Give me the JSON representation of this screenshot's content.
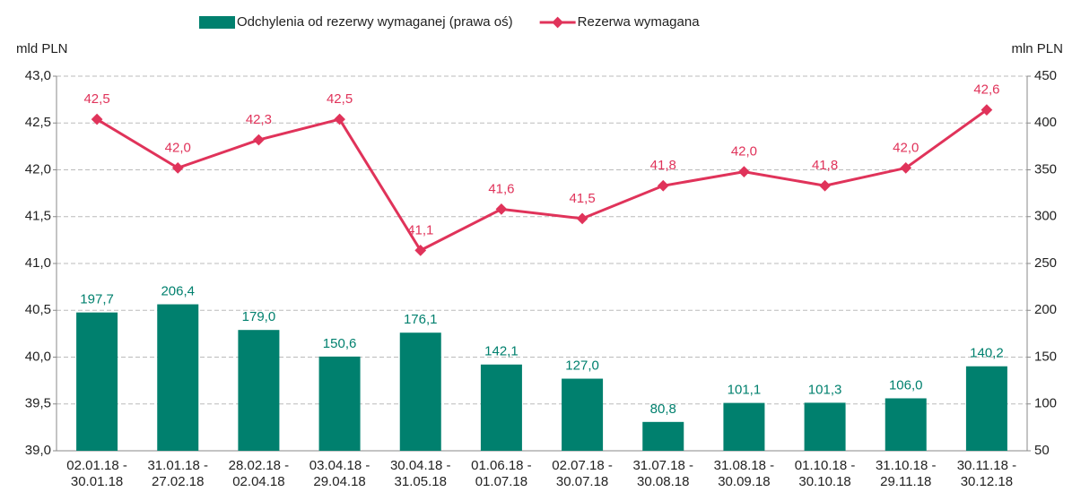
{
  "chart_data": {
    "type": "bar_line",
    "categories": [
      [
        "02.01.18 -",
        "30.01.18"
      ],
      [
        "31.01.18 -",
        "27.02.18"
      ],
      [
        "28.02.18 -",
        "02.04.18"
      ],
      [
        "03.04.18 -",
        "29.04.18"
      ],
      [
        "30.04.18 -",
        "31.05.18"
      ],
      [
        "01.06.18 -",
        "01.07.18"
      ],
      [
        "02.07.18 -",
        "30.07.18"
      ],
      [
        "31.07.18 -",
        "30.08.18"
      ],
      [
        "31.08.18 -",
        "30.09.18"
      ],
      [
        "01.10.18 -",
        "30.10.18"
      ],
      [
        "31.10.18 -",
        "29.11.18"
      ],
      [
        "30.11.18 -",
        "30.12.18"
      ]
    ],
    "y_label": "mld PLN",
    "y2_label": "mln PLN",
    "ylim": [
      39,
      43
    ],
    "yticks": [
      {
        "value": 39,
        "label": "39,0"
      },
      {
        "value": 39.5,
        "label": "39,5"
      },
      {
        "value": 40,
        "label": "40,0"
      },
      {
        "value": 40.5,
        "label": "40,5"
      },
      {
        "value": 41,
        "label": "41,0"
      },
      {
        "value": 41.5,
        "label": "41,5"
      },
      {
        "value": 42,
        "label": "42,0"
      },
      {
        "value": 42.5,
        "label": "42,5"
      },
      {
        "value": 43,
        "label": "43,0"
      }
    ],
    "y2lim": [
      50,
      450
    ],
    "y2ticks": [
      50,
      100,
      150,
      200,
      250,
      300,
      350,
      400,
      450
    ],
    "grid": true,
    "series": [
      {
        "name": "Odchylenia od rezerwy wymaganej (prawa oś)",
        "type": "bar",
        "axis": "y2",
        "color": "#00806e",
        "values": [
          197.7,
          206.4,
          179.0,
          150.6,
          176.1,
          142.1,
          127.0,
          80.8,
          101.1,
          101.3,
          106.0,
          140.2
        ],
        "value_labels": [
          "197,7",
          "206,4",
          "179,0",
          "150,6",
          "176,1",
          "142,1",
          "127,0",
          "80,8",
          "101,1",
          "101,3",
          "106,0",
          "140,2"
        ]
      },
      {
        "name": "Rezerwa wymagana",
        "type": "line",
        "axis": "y",
        "color": "#e0335a",
        "values": [
          42.54,
          42.02,
          42.32,
          42.54,
          41.14,
          41.58,
          41.48,
          41.83,
          41.98,
          41.83,
          42.02,
          42.64
        ],
        "value_labels": [
          "42,5",
          "42,0",
          "42,3",
          "42,5",
          "41,1",
          "41,6",
          "41,5",
          "41,8",
          "42,0",
          "41,8",
          "42,0",
          "42,6"
        ]
      }
    ]
  }
}
